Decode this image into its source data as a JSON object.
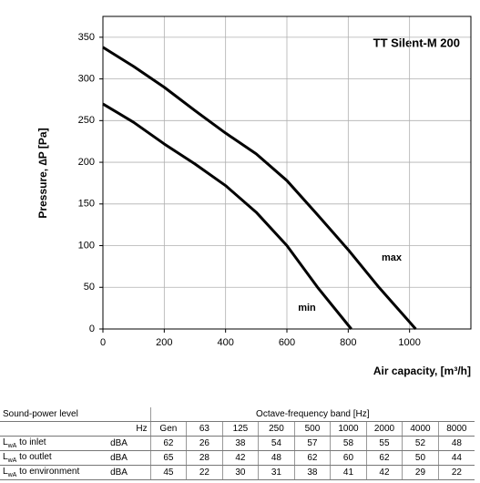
{
  "chart_data": {
    "type": "line",
    "title": "TT Silent-M 200",
    "x_label": "Air capacity, [m³/h]",
    "y_label": "Pressure, ∆P [Pa]",
    "series": [
      {
        "name": "max",
        "color": "#000000",
        "x": [
          0,
          100,
          200,
          300,
          400,
          500,
          600,
          700,
          800,
          900,
          1020
        ],
        "values": [
          338,
          315,
          290,
          262,
          235,
          210,
          178,
          137,
          95,
          50,
          0
        ]
      },
      {
        "name": "min",
        "color": "#000000",
        "x": [
          0,
          100,
          200,
          300,
          400,
          500,
          600,
          700,
          810
        ],
        "values": [
          270,
          248,
          222,
          198,
          172,
          140,
          100,
          50,
          0
        ]
      }
    ],
    "xlim": [
      0,
      1200
    ],
    "xticks": [
      0,
      200,
      400,
      600,
      800,
      1000
    ],
    "ylim": [
      0,
      375
    ],
    "yticks": [
      0,
      50,
      100,
      150,
      200,
      250,
      300,
      350
    ],
    "grid": true
  },
  "table": {
    "header": [
      "Sound-power level",
      "Octave-frequency band [Hz]"
    ],
    "subheader": [
      "Hz",
      "Gen",
      "63",
      "125",
      "250",
      "500",
      "1000",
      "2000",
      "4000",
      "8000"
    ],
    "rows": [
      {
        "symbol": "L",
        "sub": "wA",
        "label": "to inlet",
        "unit": "dBA",
        "values": [
          62,
          26,
          38,
          54,
          57,
          58,
          55,
          52,
          48
        ]
      },
      {
        "symbol": "L",
        "sub": "wA",
        "label": "to outlet",
        "unit": "dBA",
        "values": [
          65,
          28,
          42,
          48,
          62,
          60,
          62,
          50,
          44
        ]
      },
      {
        "symbol": "L",
        "sub": "wA",
        "label": "to environment",
        "unit": "dBA",
        "values": [
          45,
          22,
          30,
          31,
          38,
          41,
          42,
          29,
          22
        ]
      }
    ]
  }
}
